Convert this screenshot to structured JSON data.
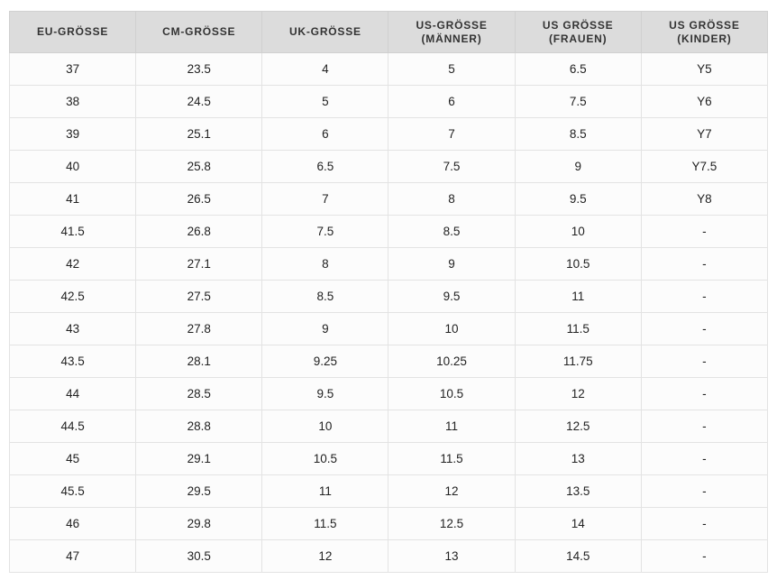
{
  "table": {
    "header": [
      [
        "EU-GRÖSSE"
      ],
      [
        "CM-GRÖSSE"
      ],
      [
        "UK-GRÖSSE"
      ],
      [
        "US-GRÖSSE",
        "(MÄNNER)"
      ],
      [
        "US GRÖSSE",
        "(FRAUEN)"
      ],
      [
        "US GRÖSSE",
        "(KINDER)"
      ]
    ],
    "rows": [
      [
        "37",
        "23.5",
        "4",
        "5",
        "6.5",
        "Y5"
      ],
      [
        "38",
        "24.5",
        "5",
        "6",
        "7.5",
        "Y6"
      ],
      [
        "39",
        "25.1",
        "6",
        "7",
        "8.5",
        "Y7"
      ],
      [
        "40",
        "25.8",
        "6.5",
        "7.5",
        "9",
        "Y7.5"
      ],
      [
        "41",
        "26.5",
        "7",
        "8",
        "9.5",
        "Y8"
      ],
      [
        "41.5",
        "26.8",
        "7.5",
        "8.5",
        "10",
        "-"
      ],
      [
        "42",
        "27.1",
        "8",
        "9",
        "10.5",
        "-"
      ],
      [
        "42.5",
        "27.5",
        "8.5",
        "9.5",
        "11",
        "-"
      ],
      [
        "43",
        "27.8",
        "9",
        "10",
        "11.5",
        "-"
      ],
      [
        "43.5",
        "28.1",
        "9.25",
        "10.25",
        "11.75",
        "-"
      ],
      [
        "44",
        "28.5",
        "9.5",
        "10.5",
        "12",
        "-"
      ],
      [
        "44.5",
        "28.8",
        "10",
        "11",
        "12.5",
        "-"
      ],
      [
        "45",
        "29.1",
        "10.5",
        "11.5",
        "13",
        "-"
      ],
      [
        "45.5",
        "29.5",
        "11",
        "12",
        "13.5",
        "-"
      ],
      [
        "46",
        "29.8",
        "11.5",
        "12.5",
        "14",
        "-"
      ],
      [
        "47",
        "30.5",
        "12",
        "13",
        "14.5",
        "-"
      ]
    ]
  }
}
